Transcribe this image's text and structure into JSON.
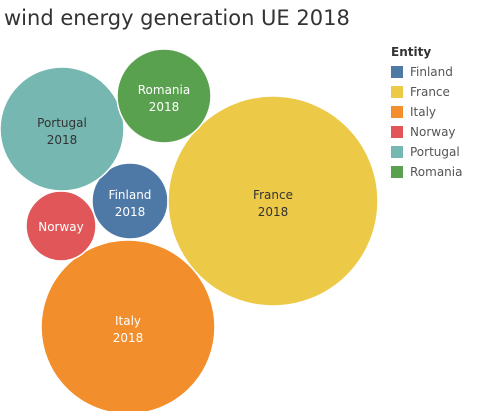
{
  "chart_data": {
    "type": "bubble",
    "title": "wind energy generation UE 2018",
    "legend": {
      "title": "Entity",
      "placement": "right",
      "entries": [
        "Finland",
        "France",
        "Italy",
        "Norway",
        "Portugal",
        "Romania"
      ]
    },
    "year": "2018",
    "series": [
      {
        "name": "Finland",
        "color": "#4e79a7",
        "label_year": true,
        "relative_size": 0.15
      },
      {
        "name": "France",
        "color": "#edc948",
        "label_year": true,
        "relative_size": 1.0
      },
      {
        "name": "Italy",
        "color": "#f28e2b",
        "label_year": true,
        "relative_size": 0.67
      },
      {
        "name": "Norway",
        "color": "#e15759",
        "label_year": false,
        "relative_size": 0.11
      },
      {
        "name": "Portugal",
        "color": "#76b7b2",
        "label_year": true,
        "relative_size": 0.34
      },
      {
        "name": "Romania",
        "color": "#59a14f",
        "label_year": true,
        "relative_size": 0.2
      }
    ]
  }
}
